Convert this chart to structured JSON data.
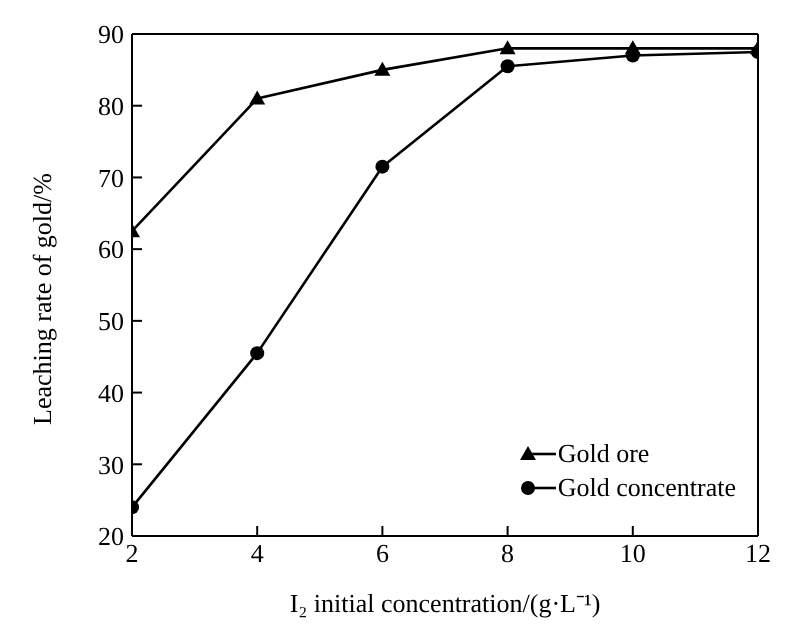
{
  "chart_data": {
    "type": "line",
    "xlabel": "I₂ initial concentration/(g·L⁻¹)",
    "ylabel": "Leaching rate of gold/%",
    "x": [
      2,
      4,
      6,
      8,
      10,
      12
    ],
    "series": [
      {
        "name": "Gold ore",
        "color": "#000000",
        "marker": "triangle",
        "values": [
          62.5,
          81,
          85,
          88,
          88,
          88
        ]
      },
      {
        "name": "Gold concentrate",
        "color": "#000000",
        "marker": "circle",
        "values": [
          24,
          45.5,
          71.5,
          85.5,
          87,
          87.5
        ]
      }
    ],
    "xlim": [
      2,
      12
    ],
    "xticks": [
      2,
      4,
      6,
      8,
      10,
      12
    ],
    "ylim": [
      20,
      90
    ],
    "yticks": [
      20,
      30,
      40,
      50,
      60,
      70,
      80,
      90
    ],
    "grid": false,
    "legend": "bottom right",
    "line_style": "solid"
  }
}
